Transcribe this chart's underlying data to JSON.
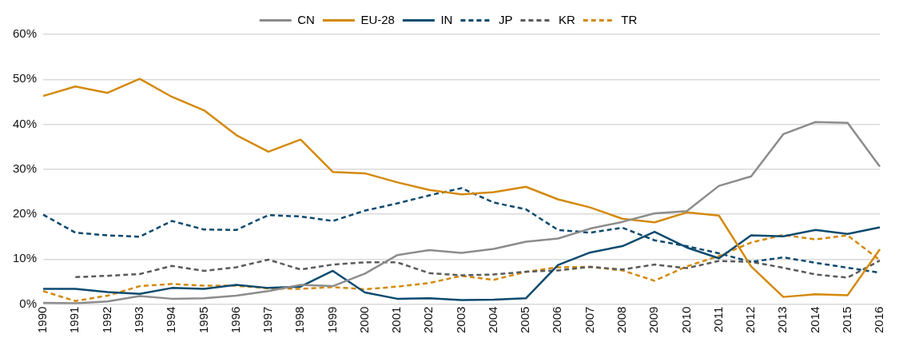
{
  "chart_data": {
    "type": "line",
    "categories": [
      "1990",
      "1991",
      "1992",
      "1993",
      "1994",
      "1995",
      "1996",
      "1997",
      "1998",
      "1999",
      "2000",
      "2001",
      "2002",
      "2003",
      "2004",
      "2005",
      "2006",
      "2007",
      "2008",
      "2009",
      "2010",
      "2011",
      "2012",
      "2013",
      "2014",
      "2015",
      "2016"
    ],
    "ylim": [
      0,
      60
    ],
    "yticks": [
      {
        "value": 0,
        "label": "0%"
      },
      {
        "value": 10,
        "label": "10%"
      },
      {
        "value": 20,
        "label": "20%"
      },
      {
        "value": 30,
        "label": "30%"
      },
      {
        "value": 40,
        "label": "40%"
      },
      {
        "value": 50,
        "label": "50%"
      },
      {
        "value": 60,
        "label": "60%"
      }
    ],
    "grid": "y",
    "legend": "top",
    "marker": "none",
    "series": [
      {
        "name": "CN",
        "color": "#8c8c8c",
        "line_style": "solid",
        "values": [
          0.3,
          0.2,
          0.6,
          1.8,
          1.2,
          1.3,
          1.9,
          2.9,
          4.3,
          4.0,
          6.8,
          10.9,
          12.0,
          11.4,
          12.3,
          13.9,
          14.6,
          16.8,
          18.3,
          20.2,
          20.7,
          26.3,
          28.4,
          37.8,
          40.5,
          40.3,
          30.6
        ]
      },
      {
        "name": "EU-28",
        "color": "#d4890b",
        "line_style": "solid",
        "values": [
          46.3,
          48.4,
          47.0,
          50.1,
          46.1,
          43.1,
          37.6,
          33.9,
          36.6,
          29.4,
          29.1,
          27.1,
          25.4,
          24.4,
          24.9,
          26.1,
          23.3,
          21.5,
          19.0,
          18.2,
          20.4,
          19.7,
          8.4,
          1.6,
          2.2,
          2.0,
          12.2
        ]
      },
      {
        "name": "IN",
        "color": "#0b4a6f",
        "line_style": "solid",
        "values": [
          3.4,
          3.4,
          2.7,
          2.3,
          3.6,
          3.4,
          4.3,
          3.6,
          3.9,
          7.4,
          2.6,
          1.2,
          1.3,
          0.9,
          1.0,
          1.3,
          8.7,
          11.5,
          12.9,
          16.1,
          12.6,
          10.2,
          15.3,
          15.1,
          16.5,
          15.6,
          17.1
        ]
      },
      {
        "name": "JP",
        "color": "#0b4a6f",
        "line_style": "dashed",
        "values": [
          19.9,
          15.9,
          15.3,
          15.0,
          18.5,
          16.6,
          16.5,
          19.8,
          19.5,
          18.5,
          20.8,
          22.4,
          24.2,
          25.8,
          22.6,
          21.1,
          16.5,
          15.9,
          17.0,
          14.2,
          12.9,
          11.3,
          9.4,
          10.4,
          9.2,
          8.1,
          7.0
        ]
      },
      {
        "name": "KR",
        "color": "#5a5a5a",
        "line_style": "dashed",
        "values": [
          null,
          6.0,
          6.3,
          6.7,
          8.5,
          7.4,
          8.2,
          9.9,
          7.7,
          8.8,
          9.3,
          9.3,
          6.9,
          6.4,
          6.6,
          7.2,
          7.5,
          8.3,
          7.7,
          8.8,
          8.0,
          9.6,
          9.4,
          8.1,
          6.6,
          5.9,
          9.7
        ]
      },
      {
        "name": "TR",
        "color": "#d4890b",
        "line_style": "dashed",
        "values": [
          2.9,
          0.7,
          1.9,
          4.0,
          4.5,
          4.1,
          4.1,
          3.5,
          3.4,
          3.8,
          3.3,
          3.9,
          4.7,
          6.3,
          5.4,
          7.2,
          8.2,
          8.3,
          7.5,
          5.2,
          8.4,
          10.7,
          13.7,
          15.4,
          14.4,
          15.3,
          9.8
        ]
      }
    ]
  }
}
